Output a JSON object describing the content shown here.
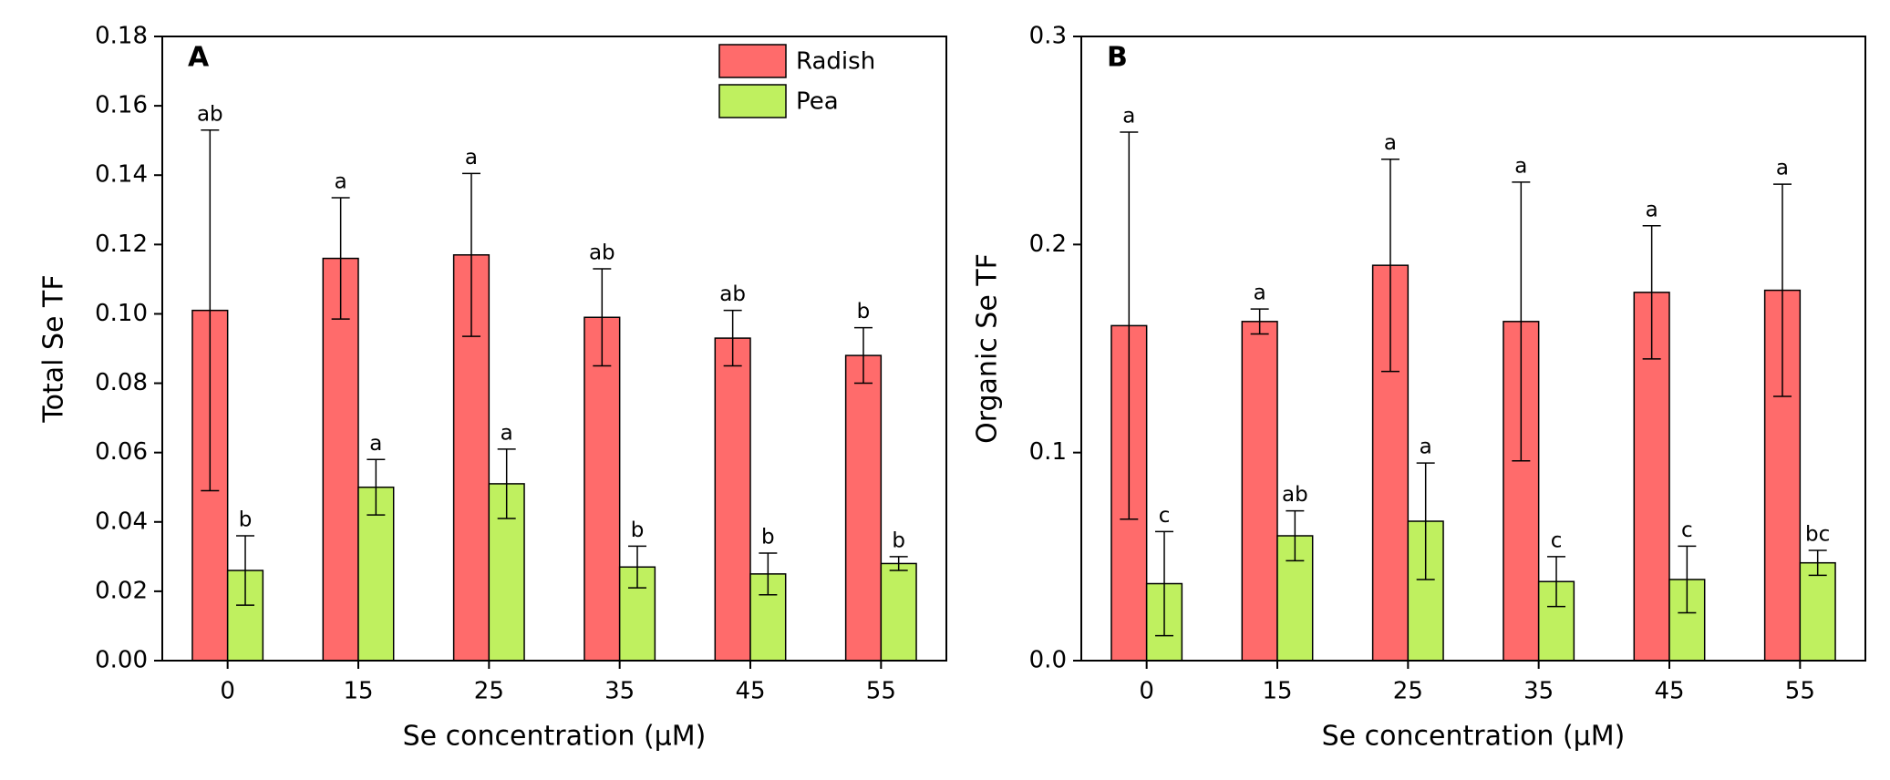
{
  "chart_data": [
    {
      "type": "bar",
      "panel": "A",
      "x_label": "Se concentration (μM)",
      "y_label": "Total Se TF",
      "categories": [
        "0",
        "15",
        "25",
        "35",
        "45",
        "55"
      ],
      "ylim": [
        0,
        0.18
      ],
      "yticks": [
        {
          "value": 0,
          "label": "0.00"
        },
        0.02,
        0.04,
        0.06,
        0.08,
        {
          "value": 0.1,
          "label": "0.10"
        },
        0.12,
        0.14,
        0.16,
        0.18
      ],
      "legend": "upper right",
      "series": [
        {
          "name": "Radish",
          "color": "#ff6b6b",
          "values": [
            0.101,
            0.116,
            0.117,
            0.099,
            0.093,
            0.088
          ],
          "errors": [
            0.052,
            0.0175,
            0.0235,
            0.014,
            0.008,
            0.008
          ],
          "letters": [
            "ab",
            "a",
            "a",
            "ab",
            "ab",
            "b"
          ]
        },
        {
          "name": "Pea",
          "color": "#bff05f",
          "values": [
            0.026,
            0.05,
            0.051,
            0.027,
            0.025,
            0.028
          ],
          "errors": [
            0.01,
            0.008,
            0.01,
            0.006,
            0.006,
            0.002
          ],
          "letters": [
            "b",
            "a",
            "a",
            "b",
            "b",
            "b"
          ]
        }
      ]
    },
    {
      "type": "bar",
      "panel": "B",
      "x_label": "Se concentration (μM)",
      "y_label": "Organic Se TF",
      "categories": [
        "0",
        "15",
        "25",
        "35",
        "45",
        "55"
      ],
      "ylim": [
        0,
        0.3
      ],
      "yticks": [
        {
          "value": 0,
          "label": "0.0"
        },
        0.1,
        0.2,
        0.3
      ],
      "series": [
        {
          "color": "#ff6b6b",
          "values": [
            0.161,
            0.163,
            0.19,
            0.163,
            0.177,
            0.178
          ],
          "errors": [
            0.093,
            0.006,
            0.051,
            0.067,
            0.032,
            0.051
          ],
          "letters": [
            "a",
            "a",
            "a",
            "a",
            "a",
            "a"
          ]
        },
        {
          "color": "#bff05f",
          "values": [
            0.037,
            0.06,
            0.067,
            0.038,
            0.039,
            0.047
          ],
          "errors": [
            0.025,
            0.012,
            0.028,
            0.012,
            0.016,
            0.006
          ],
          "letters": [
            "c",
            "ab",
            "a",
            "c",
            "c",
            "bc"
          ]
        }
      ]
    }
  ]
}
